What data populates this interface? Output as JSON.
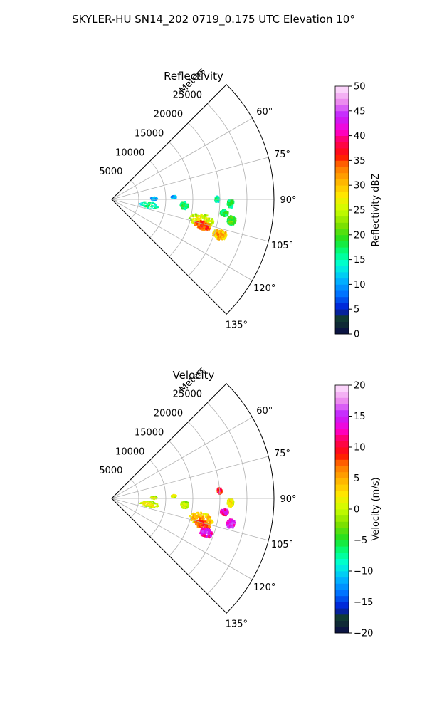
{
  "figure": {
    "title": "SKYLER-HU  SN14_202  0719_0.175 UTC Elevation 10°"
  },
  "chart_data": [
    {
      "type": "heatmap",
      "projection": "polar-sector",
      "title": "Reflectivity",
      "radial_axis_label": "Meters",
      "radial_ticks": [
        5000,
        10000,
        15000,
        20000,
        25000
      ],
      "radial_tick_labels": [
        "5000",
        "10000",
        "15000",
        "20000",
        "25000"
      ],
      "rmax": 30000,
      "azimuth_range_deg": [
        45,
        135
      ],
      "azimuth_ticks_deg": [
        60,
        75,
        90,
        105,
        120,
        135
      ],
      "azimuth_tick_labels": [
        "60°",
        "75°",
        "90°",
        "105°",
        "120°",
        "135°"
      ],
      "grid": true,
      "colorbar": {
        "label": "Reflectivity dBZ",
        "range": [
          0,
          50
        ],
        "ticks": [
          0,
          5,
          10,
          15,
          20,
          25,
          30,
          35,
          40,
          45,
          50
        ],
        "tick_labels": [
          "0",
          "5",
          "10",
          "15",
          "20",
          "25",
          "30",
          "35",
          "40",
          "45",
          "50"
        ]
      },
      "echoes": [
        {
          "az": 99,
          "r": 7000,
          "dr": 3500,
          "daz": 10,
          "value": 18
        },
        {
          "az": 89,
          "r": 7800,
          "dr": 1200,
          "daz": 5,
          "value": 13
        },
        {
          "az": 88,
          "r": 11500,
          "dr": 900,
          "daz": 3,
          "value": 14
        },
        {
          "az": 95,
          "r": 13500,
          "dr": 1500,
          "daz": 6,
          "value": 20
        },
        {
          "az": 90,
          "r": 19500,
          "dr": 800,
          "daz": 3,
          "value": 18
        },
        {
          "az": 92,
          "r": 22000,
          "dr": 1100,
          "daz": 4,
          "value": 21
        },
        {
          "az": 97,
          "r": 21000,
          "dr": 1400,
          "daz": 3,
          "value": 21
        },
        {
          "az": 103,
          "r": 17000,
          "dr": 4500,
          "daz": 8,
          "value": 28
        },
        {
          "az": 106,
          "r": 17500,
          "dr": 3000,
          "daz": 5,
          "value": 37
        },
        {
          "az": 108,
          "r": 21000,
          "dr": 2500,
          "daz": 5,
          "value": 33
        },
        {
          "az": 100,
          "r": 22500,
          "dr": 1500,
          "daz": 4,
          "value": 22
        }
      ]
    },
    {
      "type": "heatmap",
      "projection": "polar-sector",
      "title": "Velocity",
      "radial_axis_label": "Meters",
      "radial_ticks": [
        5000,
        10000,
        15000,
        20000,
        25000
      ],
      "radial_tick_labels": [
        "5000",
        "10000",
        "15000",
        "20000",
        "25000"
      ],
      "rmax": 30000,
      "azimuth_range_deg": [
        45,
        135
      ],
      "azimuth_ticks_deg": [
        60,
        75,
        90,
        105,
        120,
        135
      ],
      "azimuth_tick_labels": [
        "60°",
        "75°",
        "90°",
        "105°",
        "120°",
        "135°"
      ],
      "grid": true,
      "colorbar": {
        "label": "Velocity (m/s)",
        "range": [
          -20,
          20
        ],
        "ticks": [
          -20,
          -15,
          -10,
          -5,
          0,
          5,
          10,
          15,
          20
        ],
        "tick_labels": [
          "−20",
          "−15",
          "−10",
          "−5",
          "0",
          "5",
          "10",
          "15",
          "20"
        ]
      },
      "echoes": [
        {
          "az": 99,
          "r": 7000,
          "dr": 3500,
          "daz": 10,
          "value": 3
        },
        {
          "az": 89,
          "r": 7800,
          "dr": 1200,
          "daz": 5,
          "value": 2
        },
        {
          "az": 88,
          "r": 11500,
          "dr": 900,
          "daz": 3,
          "value": 4
        },
        {
          "az": 95,
          "r": 13500,
          "dr": 1500,
          "daz": 6,
          "value": 2
        },
        {
          "az": 86,
          "r": 20000,
          "dr": 800,
          "daz": 3,
          "value": 12
        },
        {
          "az": 92,
          "r": 22000,
          "dr": 1100,
          "daz": 4,
          "value": 4
        },
        {
          "az": 97,
          "r": 21000,
          "dr": 1400,
          "daz": 3,
          "value": 15
        },
        {
          "az": 103,
          "r": 17000,
          "dr": 4500,
          "daz": 8,
          "value": 6
        },
        {
          "az": 106,
          "r": 17500,
          "dr": 3000,
          "daz": 5,
          "value": 10
        },
        {
          "az": 110,
          "r": 18500,
          "dr": 2500,
          "daz": 5,
          "value": 16
        },
        {
          "az": 102,
          "r": 22500,
          "dr": 1500,
          "daz": 4,
          "value": 17
        }
      ]
    }
  ]
}
